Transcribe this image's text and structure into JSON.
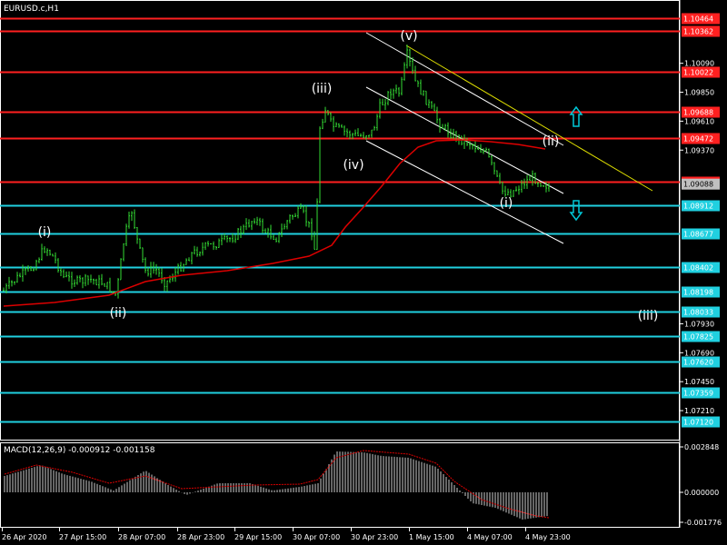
{
  "symbol_title": "EURUSD.c,H1",
  "macd_title": "MACD(12,26,9) -0.000912 -0.001158",
  "colors": {
    "background": "#000000",
    "candle": "#33dd33",
    "ma": "#dd0000",
    "resistance": "#ff2020",
    "support": "#20d0e0",
    "channel": "#ffffff",
    "upper_channel": "#dddd00",
    "arrow": "#00c8d8",
    "macd_hist": "#cccccc",
    "macd_signal": "#dd0000"
  },
  "price_axis_ticks": [
    "1.10090",
    "1.09850",
    "1.09610",
    "1.09370",
    "1.07930",
    "1.07690",
    "1.07450",
    "1.07210"
  ],
  "levels": [
    {
      "price": "1.10464",
      "kind": "resistance"
    },
    {
      "price": "1.10362",
      "kind": "resistance"
    },
    {
      "price": "1.10022",
      "kind": "resistance"
    },
    {
      "price": "1.09688",
      "kind": "resistance"
    },
    {
      "price": "1.09472",
      "kind": "resistance"
    },
    {
      "price": "1.09107",
      "kind": "resistance"
    },
    {
      "price": "1.08912",
      "kind": "support"
    },
    {
      "price": "1.08677",
      "kind": "support"
    },
    {
      "price": "1.08402",
      "kind": "support"
    },
    {
      "price": "1.08198",
      "kind": "support"
    },
    {
      "price": "1.08033",
      "kind": "support"
    },
    {
      "price": "1.07825",
      "kind": "support"
    },
    {
      "price": "1.07620",
      "kind": "support"
    },
    {
      "price": "1.07359",
      "kind": "support"
    },
    {
      "price": "1.07120",
      "kind": "support"
    }
  ],
  "current_price": "1.09088",
  "wave_labels": [
    "(i)",
    "(ii)",
    "(iii)",
    "(iv)",
    "(v)",
    "(i)",
    "(ii)",
    "(iii)"
  ],
  "time_axis": [
    "26 Apr 2020",
    "27 Apr 15:00",
    "28 Apr 07:00",
    "28 Apr 23:00",
    "29 Apr 15:00",
    "30 Apr 07:00",
    "30 Apr 23:00",
    "1 May 15:00",
    "4 May 07:00",
    "4 May 23:00"
  ],
  "macd_axis": [
    "0.002848",
    "0.000000",
    "-0.001776"
  ],
  "arrows": [
    {
      "direction": "up"
    },
    {
      "direction": "down"
    }
  ]
}
